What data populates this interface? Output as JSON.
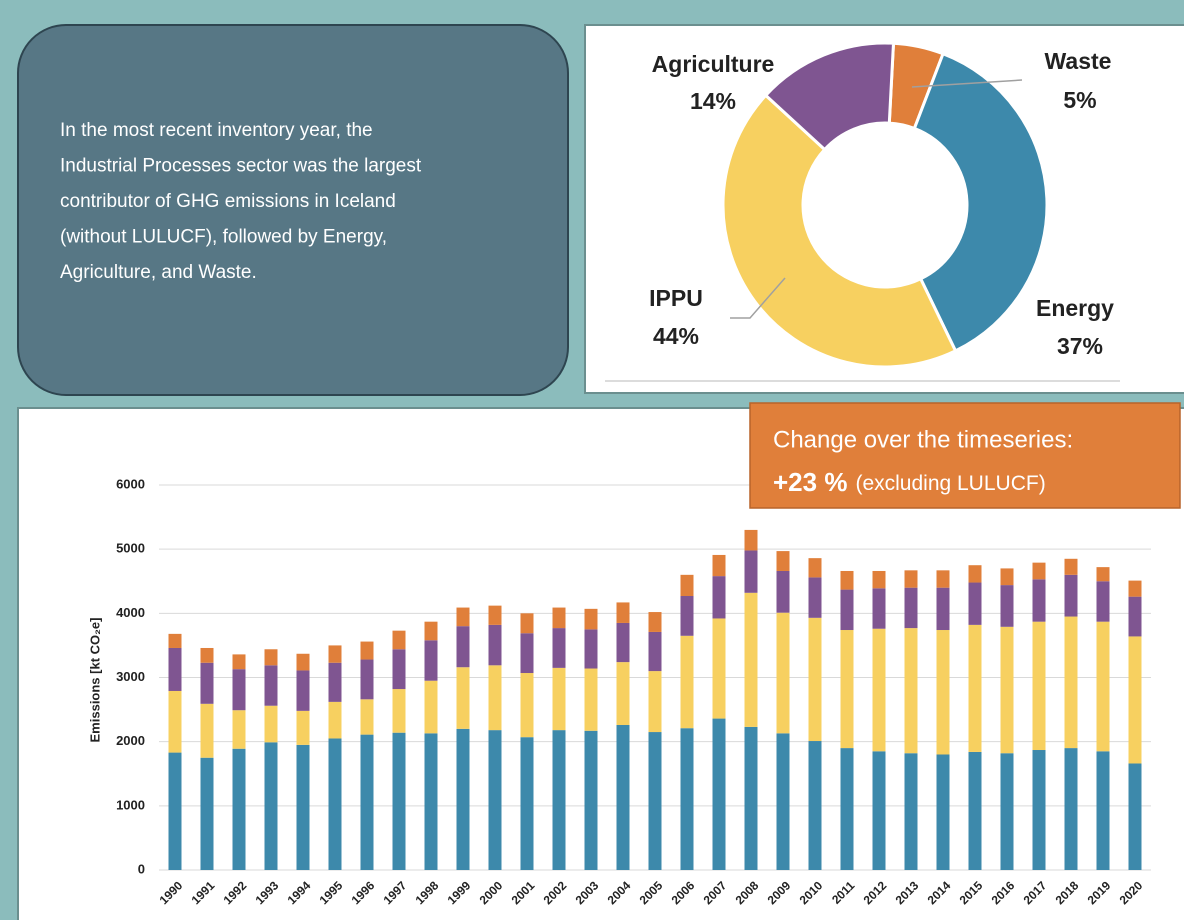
{
  "panel_text": [
    "In the most recent inventory year, the",
    "Industrial Processes sector was the largest",
    "contributor of GHG emissions in Iceland",
    "(without LULUCF), followed by Energy,",
    "Agriculture, and Waste."
  ],
  "callout": {
    "line1": "Change over the timeseries:",
    "highlight": "+23 %",
    "note": "(excluding LULUCF)"
  },
  "chart_data": [
    {
      "type": "donut",
      "categories": [
        "Waste",
        "Energy",
        "IPPU",
        "Agriculture"
      ],
      "values": [
        5,
        37,
        44,
        14
      ],
      "value_labels": [
        "5%",
        "37%",
        "44%",
        "14%"
      ],
      "colors": [
        "#e07f3a",
        "#3d89ab",
        "#f7d060",
        "#7f5591"
      ]
    },
    {
      "type": "stacked_bar",
      "y_label": "Emissions [kt CO₂e]",
      "categories": [
        "1990",
        "1991",
        "1992",
        "1993",
        "1994",
        "1995",
        "1996",
        "1997",
        "1998",
        "1999",
        "2000",
        "2001",
        "2002",
        "2003",
        "2004",
        "2005",
        "2006",
        "2007",
        "2008",
        "2009",
        "2010",
        "2011",
        "2012",
        "2013",
        "2014",
        "2015",
        "2016",
        "2017",
        "2018",
        "2019",
        "2020"
      ],
      "series": [
        {
          "color": "#3d89ab",
          "values": [
            1830,
            1750,
            1890,
            1990,
            1950,
            2050,
            2110,
            2140,
            2130,
            2200,
            2180,
            2070,
            2180,
            2170,
            2260,
            2150,
            2210,
            2360,
            2230,
            2130,
            2010,
            1900,
            1850,
            1820,
            1800,
            1840,
            1820,
            1870,
            1900,
            1850,
            1660
          ]
        },
        {
          "color": "#f7d060",
          "values": [
            960,
            840,
            600,
            570,
            530,
            570,
            550,
            680,
            820,
            960,
            1010,
            1000,
            970,
            970,
            980,
            950,
            1440,
            1560,
            2090,
            1880,
            1920,
            1840,
            1910,
            1950,
            1940,
            1980,
            1970,
            2000,
            2050,
            2020,
            1980
          ]
        },
        {
          "color": "#7f5591",
          "values": [
            670,
            640,
            640,
            630,
            630,
            610,
            620,
            620,
            630,
            640,
            630,
            620,
            620,
            610,
            610,
            610,
            620,
            660,
            660,
            650,
            630,
            630,
            630,
            630,
            660,
            660,
            650,
            660,
            650,
            630,
            620
          ]
        },
        {
          "color": "#e07f3a",
          "values": [
            220,
            230,
            230,
            250,
            260,
            270,
            280,
            290,
            290,
            290,
            300,
            310,
            320,
            320,
            320,
            310,
            330,
            330,
            320,
            310,
            300,
            290,
            270,
            270,
            270,
            270,
            260,
            260,
            250,
            220,
            250
          ]
        }
      ],
      "ylim": [
        0,
        6000
      ],
      "yticks": [
        0,
        1000,
        2000,
        3000,
        4000,
        5000,
        6000
      ],
      "grid": true
    }
  ]
}
